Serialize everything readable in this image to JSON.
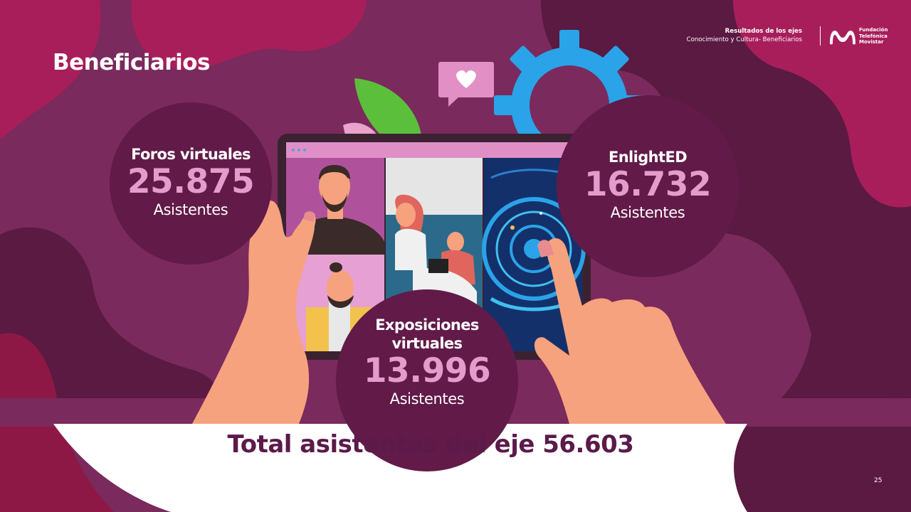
{
  "slide": {
    "title": "Beneficiarios",
    "page_number": "25"
  },
  "header": {
    "line1": "Resultados de los ejes",
    "line2": "Conocimiento y Cultura- Beneficiarios",
    "brand_line1": "Fundación",
    "brand_line2": "Telefónica",
    "brand_line3": "Movistar"
  },
  "stats": {
    "foros": {
      "label": "Foros virtuales",
      "value": "25.875",
      "unit": "Asistentes"
    },
    "enlighted": {
      "label": "EnlightED",
      "value": "16.732",
      "unit": "Asistentes"
    },
    "exposiciones": {
      "label_line1": "Exposiciones",
      "label_line2": "virtuales",
      "value": "13.996",
      "unit": "Asistentes"
    }
  },
  "total": "Total asistentes del eje 56.603",
  "colors": {
    "background": "#7a2a5c",
    "blob_dark": "#5a1a42",
    "blob_magenta": "#a81e5a",
    "circle": "#621a48",
    "number_pink": "#e49ccd",
    "total_text": "#5b1a4a",
    "gear": "#2aa3e8",
    "skin": "#f6a27e"
  },
  "icons": [
    "heart-speech-icon",
    "gear-icon",
    "leaf-icon",
    "movistar-logo-icon"
  ]
}
